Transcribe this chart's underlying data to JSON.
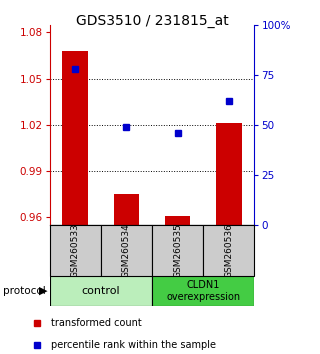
{
  "title": "GDS3510 / 231815_at",
  "samples": [
    "GSM260533",
    "GSM260534",
    "GSM260535",
    "GSM260536"
  ],
  "transformed_count": [
    1.068,
    0.975,
    0.961,
    1.021
  ],
  "percentile_rank": [
    78,
    49,
    46,
    62
  ],
  "ylim_left": [
    0.955,
    1.085
  ],
  "ylim_right": [
    0,
    100
  ],
  "yticks_left": [
    0.96,
    0.99,
    1.02,
    1.05,
    1.08
  ],
  "yticks_right": [
    0,
    25,
    50,
    75,
    100
  ],
  "ytick_labels_right": [
    "0",
    "25",
    "50",
    "75",
    "100%"
  ],
  "bar_color": "#cc0000",
  "dot_color": "#0000cc",
  "bar_width": 0.5,
  "control_label": "control",
  "overexpression_label": "CLDN1\noverexpression",
  "control_color": "#bbeebb",
  "overexpression_color": "#44cc44",
  "sample_box_color": "#cccccc",
  "protocol_label": "protocol",
  "legend_bar_label": "transformed count",
  "legend_dot_label": "percentile rank within the sample",
  "left_tick_color": "#cc0000",
  "right_tick_color": "#0000cc"
}
